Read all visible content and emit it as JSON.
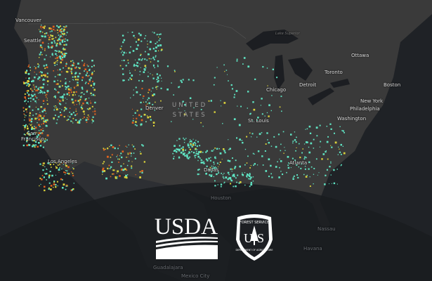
{
  "map": {
    "country_label": [
      "UNITED",
      "STATES"
    ],
    "cities": [
      {
        "name": "Vancouver"
      },
      {
        "name": "Seattle"
      },
      {
        "name": "San Francisco"
      },
      {
        "name": "Los Angeles"
      },
      {
        "name": "Denver"
      },
      {
        "name": "Dallas"
      },
      {
        "name": "St. Louis"
      },
      {
        "name": "Chicago"
      },
      {
        "name": "Detroit"
      },
      {
        "name": "Toronto"
      },
      {
        "name": "Ottawa"
      },
      {
        "name": "Boston"
      },
      {
        "name": "New York"
      },
      {
        "name": "Philadelphia"
      },
      {
        "name": "Washington"
      },
      {
        "name": "Atlanta"
      },
      {
        "name": "Houston"
      },
      {
        "name": "Havana"
      },
      {
        "name": "Guadalajara"
      },
      {
        "name": "Mexico City"
      },
      {
        "name": "Nassau"
      }
    ],
    "lake_label": "Lake Superior",
    "colors": {
      "ocean": "#1f2226",
      "land": "#3a3a3a",
      "low": "#5fe3c2",
      "mid": "#d9d23a",
      "high": "#e0621e"
    }
  },
  "logos": {
    "usda": "USDA",
    "forest_service_top": "FOREST SERVICE",
    "forest_service_mid": "US",
    "forest_service_bottom": "DEPARTMENT OF AGRICULTURE"
  }
}
